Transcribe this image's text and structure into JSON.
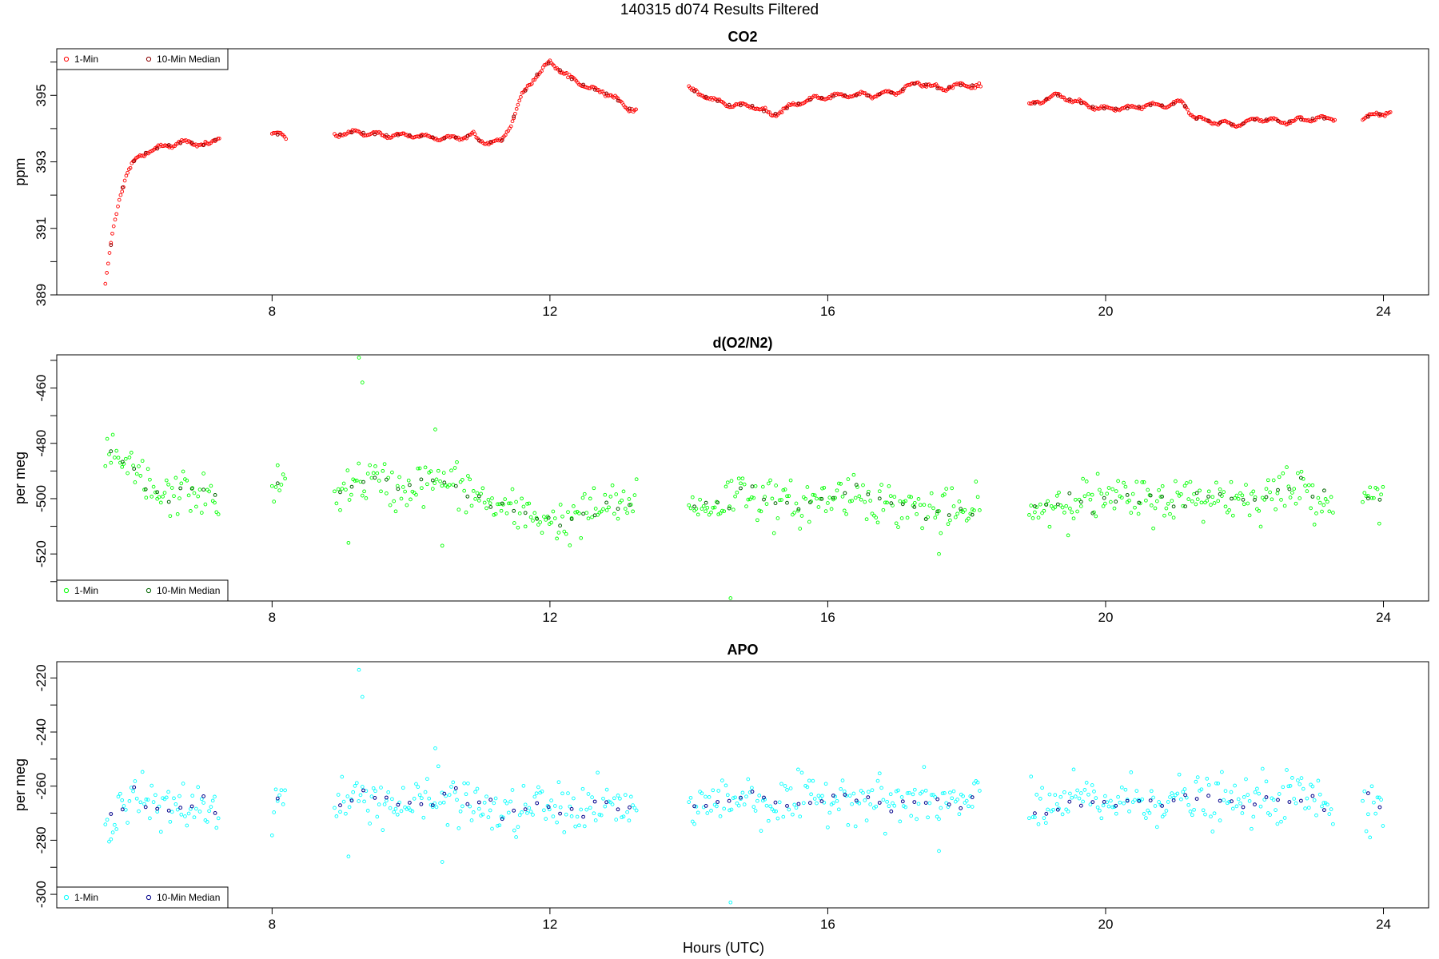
{
  "figure": {
    "title": "140315   d074   Results Filtered",
    "xlabel": "Hours (UTC)"
  },
  "colors": {
    "co2": "#ff0000",
    "o2n2": "#00ff00",
    "apo": "#00ffff",
    "median_co2": "#8b0000",
    "median_o2n2": "#006400",
    "median_apo": "#00008b",
    "axis": "#000000"
  },
  "chart_data": [
    {
      "type": "scatter",
      "title": "CO2",
      "xlabel": "",
      "ylabel": "ppm",
      "xlim": [
        4.9,
        24.65
      ],
      "ylim": [
        389,
        396.4
      ],
      "xticks": [
        8,
        12,
        16,
        20,
        24
      ],
      "yticks": [
        389,
        391,
        393,
        395
      ],
      "ytick_labels_at": [
        389,
        391,
        393,
        395
      ],
      "yminor": [
        390,
        392,
        394,
        396
      ],
      "legend": {
        "position": "top-left",
        "entries": [
          "1-Min",
          "10-Min Median"
        ]
      },
      "series_desc": [
        {
          "name": "1-Min",
          "color": "co2"
        },
        {
          "name": "10-Min Median",
          "color": "median_co2"
        }
      ],
      "anchors": [
        [
          5.6,
          389.3
        ],
        [
          5.7,
          390.8
        ],
        [
          5.8,
          391.9
        ],
        [
          5.9,
          392.6
        ],
        [
          6.0,
          393.0
        ],
        [
          6.2,
          393.3
        ],
        [
          6.5,
          393.5
        ],
        [
          6.8,
          393.6
        ],
        [
          7.0,
          393.5
        ],
        [
          7.1,
          393.5
        ],
        [
          7.25,
          393.8
        ],
        [
          8.0,
          393.9
        ],
        [
          8.2,
          393.7
        ],
        [
          8.9,
          393.8
        ],
        [
          9.2,
          393.9
        ],
        [
          9.6,
          393.8
        ],
        [
          10.0,
          393.8
        ],
        [
          10.5,
          393.7
        ],
        [
          10.9,
          393.8
        ],
        [
          11.0,
          393.6
        ],
        [
          11.3,
          393.6
        ],
        [
          11.45,
          394.2
        ],
        [
          11.6,
          395.0
        ],
        [
          11.8,
          395.6
        ],
        [
          12.0,
          396.0
        ],
        [
          12.3,
          395.5
        ],
        [
          12.6,
          395.2
        ],
        [
          12.9,
          395.0
        ],
        [
          13.1,
          394.6
        ],
        [
          13.25,
          394.6
        ],
        [
          14.0,
          395.2
        ],
        [
          14.3,
          394.9
        ],
        [
          14.6,
          394.7
        ],
        [
          14.9,
          394.7
        ],
        [
          15.2,
          394.4
        ],
        [
          15.5,
          394.7
        ],
        [
          15.8,
          394.9
        ],
        [
          16.2,
          395.0
        ],
        [
          16.6,
          395.0
        ],
        [
          17.0,
          395.1
        ],
        [
          17.3,
          395.4
        ],
        [
          17.6,
          395.2
        ],
        [
          17.9,
          395.3
        ],
        [
          18.2,
          395.3
        ],
        [
          18.9,
          394.7
        ],
        [
          19.3,
          395.0
        ],
        [
          19.6,
          394.8
        ],
        [
          19.9,
          394.6
        ],
        [
          20.3,
          394.6
        ],
        [
          20.6,
          394.7
        ],
        [
          20.9,
          394.7
        ],
        [
          21.1,
          394.8
        ],
        [
          21.3,
          394.3
        ],
        [
          21.6,
          394.2
        ],
        [
          21.9,
          394.1
        ],
        [
          22.2,
          394.3
        ],
        [
          22.6,
          394.2
        ],
        [
          22.9,
          394.3
        ],
        [
          23.3,
          394.3
        ],
        [
          23.7,
          394.3
        ],
        [
          23.85,
          394.4
        ],
        [
          24.1,
          394.5
        ]
      ],
      "segments": [
        [
          5.6,
          7.25
        ],
        [
          8.0,
          8.2
        ],
        [
          8.9,
          13.25
        ],
        [
          14.0,
          18.2
        ],
        [
          18.9,
          23.3
        ],
        [
          23.7,
          24.1
        ]
      ],
      "noise": 0.05
    },
    {
      "type": "scatter",
      "title": "d(O2/N2)",
      "xlabel": "",
      "ylabel": "per meg",
      "xlim": [
        4.9,
        24.65
      ],
      "ylim": [
        -537,
        -448
      ],
      "xticks": [
        8,
        12,
        16,
        20,
        24
      ],
      "yticks": [
        -460,
        -480,
        -500,
        -520
      ],
      "ytick_labels_at": [
        -460,
        -480,
        -500,
        -520
      ],
      "yminor": [
        -450,
        -470,
        -490,
        -510,
        -530
      ],
      "legend": {
        "position": "bottom-left",
        "entries": [
          "1-Min",
          "10-Min Median"
        ]
      },
      "series_desc": [
        {
          "name": "1-Min",
          "color": "o2n2"
        },
        {
          "name": "10-Min Median",
          "color": "median_o2n2"
        }
      ],
      "anchors": [
        [
          5.6,
          -485
        ],
        [
          6.0,
          -490
        ],
        [
          6.4,
          -500
        ],
        [
          6.8,
          -497
        ],
        [
          7.2,
          -500
        ],
        [
          8.0,
          -495
        ],
        [
          8.2,
          -495
        ],
        [
          8.9,
          -497
        ],
        [
          9.4,
          -493
        ],
        [
          9.8,
          -497
        ],
        [
          10.2,
          -494
        ],
        [
          10.6,
          -494
        ],
        [
          11.0,
          -500
        ],
        [
          11.4,
          -505
        ],
        [
          11.8,
          -506
        ],
        [
          12.2,
          -509
        ],
        [
          12.6,
          -504
        ],
        [
          13.0,
          -502
        ],
        [
          13.2,
          -502
        ],
        [
          14.0,
          -504
        ],
        [
          14.4,
          -502
        ],
        [
          14.8,
          -496
        ],
        [
          15.2,
          -502
        ],
        [
          15.6,
          -502
        ],
        [
          16.0,
          -500
        ],
        [
          16.4,
          -497
        ],
        [
          16.8,
          -502
        ],
        [
          17.2,
          -503
        ],
        [
          17.6,
          -505
        ],
        [
          18.0,
          -505
        ],
        [
          18.2,
          -504
        ],
        [
          18.9,
          -505
        ],
        [
          19.2,
          -502
        ],
        [
          19.6,
          -500
        ],
        [
          20.0,
          -500
        ],
        [
          20.4,
          -501
        ],
        [
          20.8,
          -500
        ],
        [
          21.2,
          -500
        ],
        [
          21.6,
          -499
        ],
        [
          22.0,
          -500
        ],
        [
          22.4,
          -498
        ],
        [
          22.8,
          -496
        ],
        [
          23.2,
          -500
        ],
        [
          23.3,
          -502
        ],
        [
          23.7,
          -498
        ],
        [
          24.0,
          -503
        ]
      ],
      "segments": [
        [
          5.6,
          7.25
        ],
        [
          8.0,
          8.2
        ],
        [
          8.9,
          13.25
        ],
        [
          14.0,
          18.2
        ],
        [
          18.9,
          23.3
        ],
        [
          23.7,
          24.0
        ]
      ],
      "noise": 4,
      "outliers": [
        [
          9.25,
          -449
        ],
        [
          9.3,
          -458
        ],
        [
          10.35,
          -475
        ],
        [
          14.6,
          -536
        ],
        [
          9.1,
          -516
        ],
        [
          10.45,
          -517
        ],
        [
          17.6,
          -520
        ]
      ]
    },
    {
      "type": "scatter",
      "title": "APO",
      "xlabel": "Hours (UTC)",
      "ylabel": "per meg",
      "xlim": [
        4.9,
        24.65
      ],
      "ylim": [
        -305,
        -214
      ],
      "xticks": [
        8,
        12,
        16,
        20,
        24
      ],
      "yticks": [
        -220,
        -240,
        -260,
        -280,
        -300
      ],
      "ytick_labels_at": [
        -220,
        -240,
        -260,
        -280,
        -300
      ],
      "yminor": [
        -230,
        -250,
        -270,
        -290
      ],
      "legend": {
        "position": "bottom-left",
        "entries": [
          "1-Min",
          "10-Min Median"
        ]
      },
      "series_desc": [
        {
          "name": "1-Min",
          "color": "apo"
        },
        {
          "name": "10-Min Median",
          "color": "median_apo"
        }
      ],
      "anchors": [
        [
          5.6,
          -272
        ],
        [
          6.0,
          -262
        ],
        [
          6.4,
          -270
        ],
        [
          6.8,
          -267
        ],
        [
          7.2,
          -268
        ],
        [
          8.0,
          -265
        ],
        [
          8.2,
          -265
        ],
        [
          8.9,
          -266
        ],
        [
          9.4,
          -264
        ],
        [
          9.8,
          -267
        ],
        [
          10.2,
          -266
        ],
        [
          10.6,
          -264
        ],
        [
          11.0,
          -268
        ],
        [
          11.4,
          -271
        ],
        [
          11.8,
          -267
        ],
        [
          12.2,
          -269
        ],
        [
          12.6,
          -267
        ],
        [
          13.0,
          -268
        ],
        [
          13.2,
          -268
        ],
        [
          14.0,
          -268
        ],
        [
          14.4,
          -266
        ],
        [
          14.8,
          -263
        ],
        [
          15.2,
          -267
        ],
        [
          15.6,
          -266
        ],
        [
          16.0,
          -264
        ],
        [
          16.4,
          -263
        ],
        [
          16.8,
          -266
        ],
        [
          17.2,
          -266
        ],
        [
          17.6,
          -266
        ],
        [
          18.0,
          -267
        ],
        [
          18.2,
          -266
        ],
        [
          18.9,
          -270
        ],
        [
          19.2,
          -268
        ],
        [
          19.6,
          -265
        ],
        [
          20.0,
          -266
        ],
        [
          20.4,
          -265
        ],
        [
          20.8,
          -265
        ],
        [
          21.2,
          -265
        ],
        [
          21.6,
          -266
        ],
        [
          22.0,
          -266
        ],
        [
          22.4,
          -265
        ],
        [
          22.8,
          -263
        ],
        [
          23.2,
          -267
        ],
        [
          23.3,
          -269
        ],
        [
          23.7,
          -264
        ],
        [
          24.0,
          -268
        ]
      ],
      "segments": [
        [
          5.6,
          7.25
        ],
        [
          8.0,
          8.2
        ],
        [
          8.9,
          13.25
        ],
        [
          14.0,
          18.2
        ],
        [
          18.9,
          23.3
        ],
        [
          23.7,
          24.0
        ]
      ],
      "noise": 4.5,
      "outliers": [
        [
          9.25,
          -217
        ],
        [
          9.3,
          -227
        ],
        [
          10.35,
          -246
        ],
        [
          14.6,
          -303
        ],
        [
          9.1,
          -286
        ],
        [
          10.45,
          -288
        ],
        [
          17.6,
          -284
        ]
      ]
    }
  ]
}
